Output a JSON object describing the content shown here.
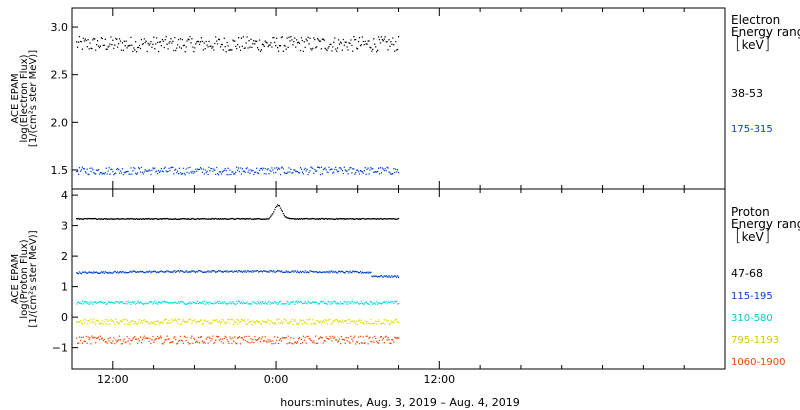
{
  "chart_data": [
    {
      "type": "scatter",
      "ylabel_lines": [
        "ACE EPAM",
        "log(Electron Flux)",
        "[1/(cm²s ster MeV)]"
      ],
      "ylim": [
        1.3,
        3.2
      ],
      "yticks": [
        1.5,
        2.0,
        2.5,
        3.0
      ],
      "ytick_labels": [
        "1.5",
        "2.0",
        "2.5",
        "3.0"
      ],
      "legend": {
        "title_lines": [
          "Electron",
          "Energy ranges"
        ],
        "unit": "keV"
      },
      "series": [
        {
          "name": "38-53",
          "color": "#000000",
          "center": 2.82,
          "spread": 0.08,
          "shape": "flat"
        },
        {
          "name": "175-315",
          "color": "#0044cc",
          "center": 1.49,
          "spread": 0.04,
          "shape": "flat"
        }
      ]
    },
    {
      "type": "scatter",
      "ylabel_lines": [
        "ACE EPAM",
        "log(Proton Flux)",
        "[1/(cm²s ster MeV)]"
      ],
      "ylim": [
        -1.7,
        4.2
      ],
      "yticks": [
        -1,
        0,
        1,
        2,
        3,
        4
      ],
      "ytick_labels": [
        "−1",
        "0",
        "1",
        "2",
        "3",
        "4"
      ],
      "legend": {
        "title_lines": [
          "Proton",
          "Energy ranges"
        ],
        "unit": "keV"
      },
      "series": [
        {
          "name": "47-68",
          "color": "#000000",
          "center": 3.22,
          "spread": 0.015,
          "shape": "spike"
        },
        {
          "name": "115-195",
          "color": "#0044cc",
          "center": 1.45,
          "spread": 0.03,
          "shape": "bump"
        },
        {
          "name": "310-580",
          "color": "#00dddd",
          "center": 0.47,
          "spread": 0.05,
          "shape": "flat"
        },
        {
          "name": "795-1193",
          "color": "#dddd00",
          "center": -0.15,
          "spread": 0.09,
          "shape": "flat"
        },
        {
          "name": "1060-1900",
          "color": "#ee4400",
          "center": -0.75,
          "spread": 0.13,
          "shape": "flat"
        }
      ]
    }
  ],
  "x_axis": {
    "range_hours": [
      -15,
      33
    ],
    "data_end_hours": 9,
    "ticks": [
      {
        "hours": -12,
        "label": "12:00"
      },
      {
        "hours": 0,
        "label": "0:00"
      },
      {
        "hours": 12,
        "label": "12:00"
      }
    ],
    "minor_tick_hours": [
      -9,
      -6,
      -3,
      3,
      6,
      9,
      15,
      18,
      21,
      24,
      27,
      30
    ]
  },
  "xlabel": "hours:minutes, Aug.  3, 2019 – Aug.  4, 2019"
}
